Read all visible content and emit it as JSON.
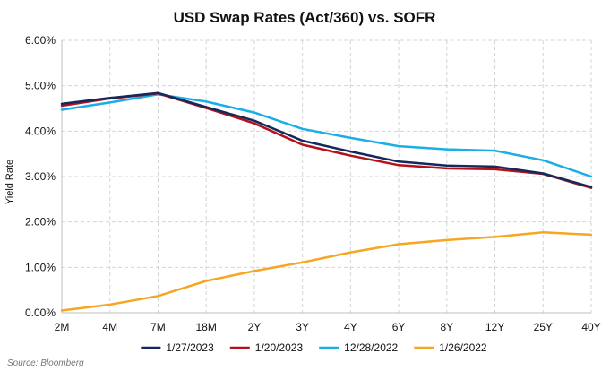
{
  "chart_data": {
    "type": "line",
    "title": "USD Swap Rates (Act/360) vs. SOFR",
    "xlabel": "",
    "ylabel": "Yield Rate",
    "categories": [
      "2M",
      "4M",
      "7M",
      "18M",
      "2Y",
      "3Y",
      "4Y",
      "6Y",
      "8Y",
      "12Y",
      "25Y",
      "40Y"
    ],
    "ylim": [
      0,
      6
    ],
    "y_ticks": [
      0,
      1,
      2,
      3,
      4,
      5,
      6
    ],
    "y_tick_labels": [
      "0.00%",
      "1.00%",
      "2.00%",
      "3.00%",
      "4.00%",
      "5.00%",
      "6.00%"
    ],
    "grid": true,
    "legend_position": "bottom",
    "source": "Source: Bloomberg",
    "series": [
      {
        "name": "1/27/2023",
        "color": "#14285a",
        "values": [
          4.6,
          4.73,
          4.84,
          4.53,
          4.23,
          3.79,
          3.55,
          3.33,
          3.24,
          3.22,
          3.07,
          2.77
        ]
      },
      {
        "name": "1/20/2023",
        "color": "#b3121b",
        "values": [
          4.56,
          4.72,
          4.83,
          4.51,
          4.17,
          3.7,
          3.46,
          3.25,
          3.18,
          3.16,
          3.06,
          2.75
        ]
      },
      {
        "name": "12/28/2022",
        "color": "#19aee6",
        "values": [
          4.47,
          4.63,
          4.81,
          4.65,
          4.41,
          4.05,
          3.85,
          3.67,
          3.6,
          3.57,
          3.36,
          3.0
        ]
      },
      {
        "name": "1/26/2022",
        "color": "#f5a623",
        "values": [
          0.05,
          0.18,
          0.37,
          0.7,
          0.92,
          1.11,
          1.33,
          1.51,
          1.6,
          1.67,
          1.77,
          1.72
        ]
      }
    ]
  }
}
